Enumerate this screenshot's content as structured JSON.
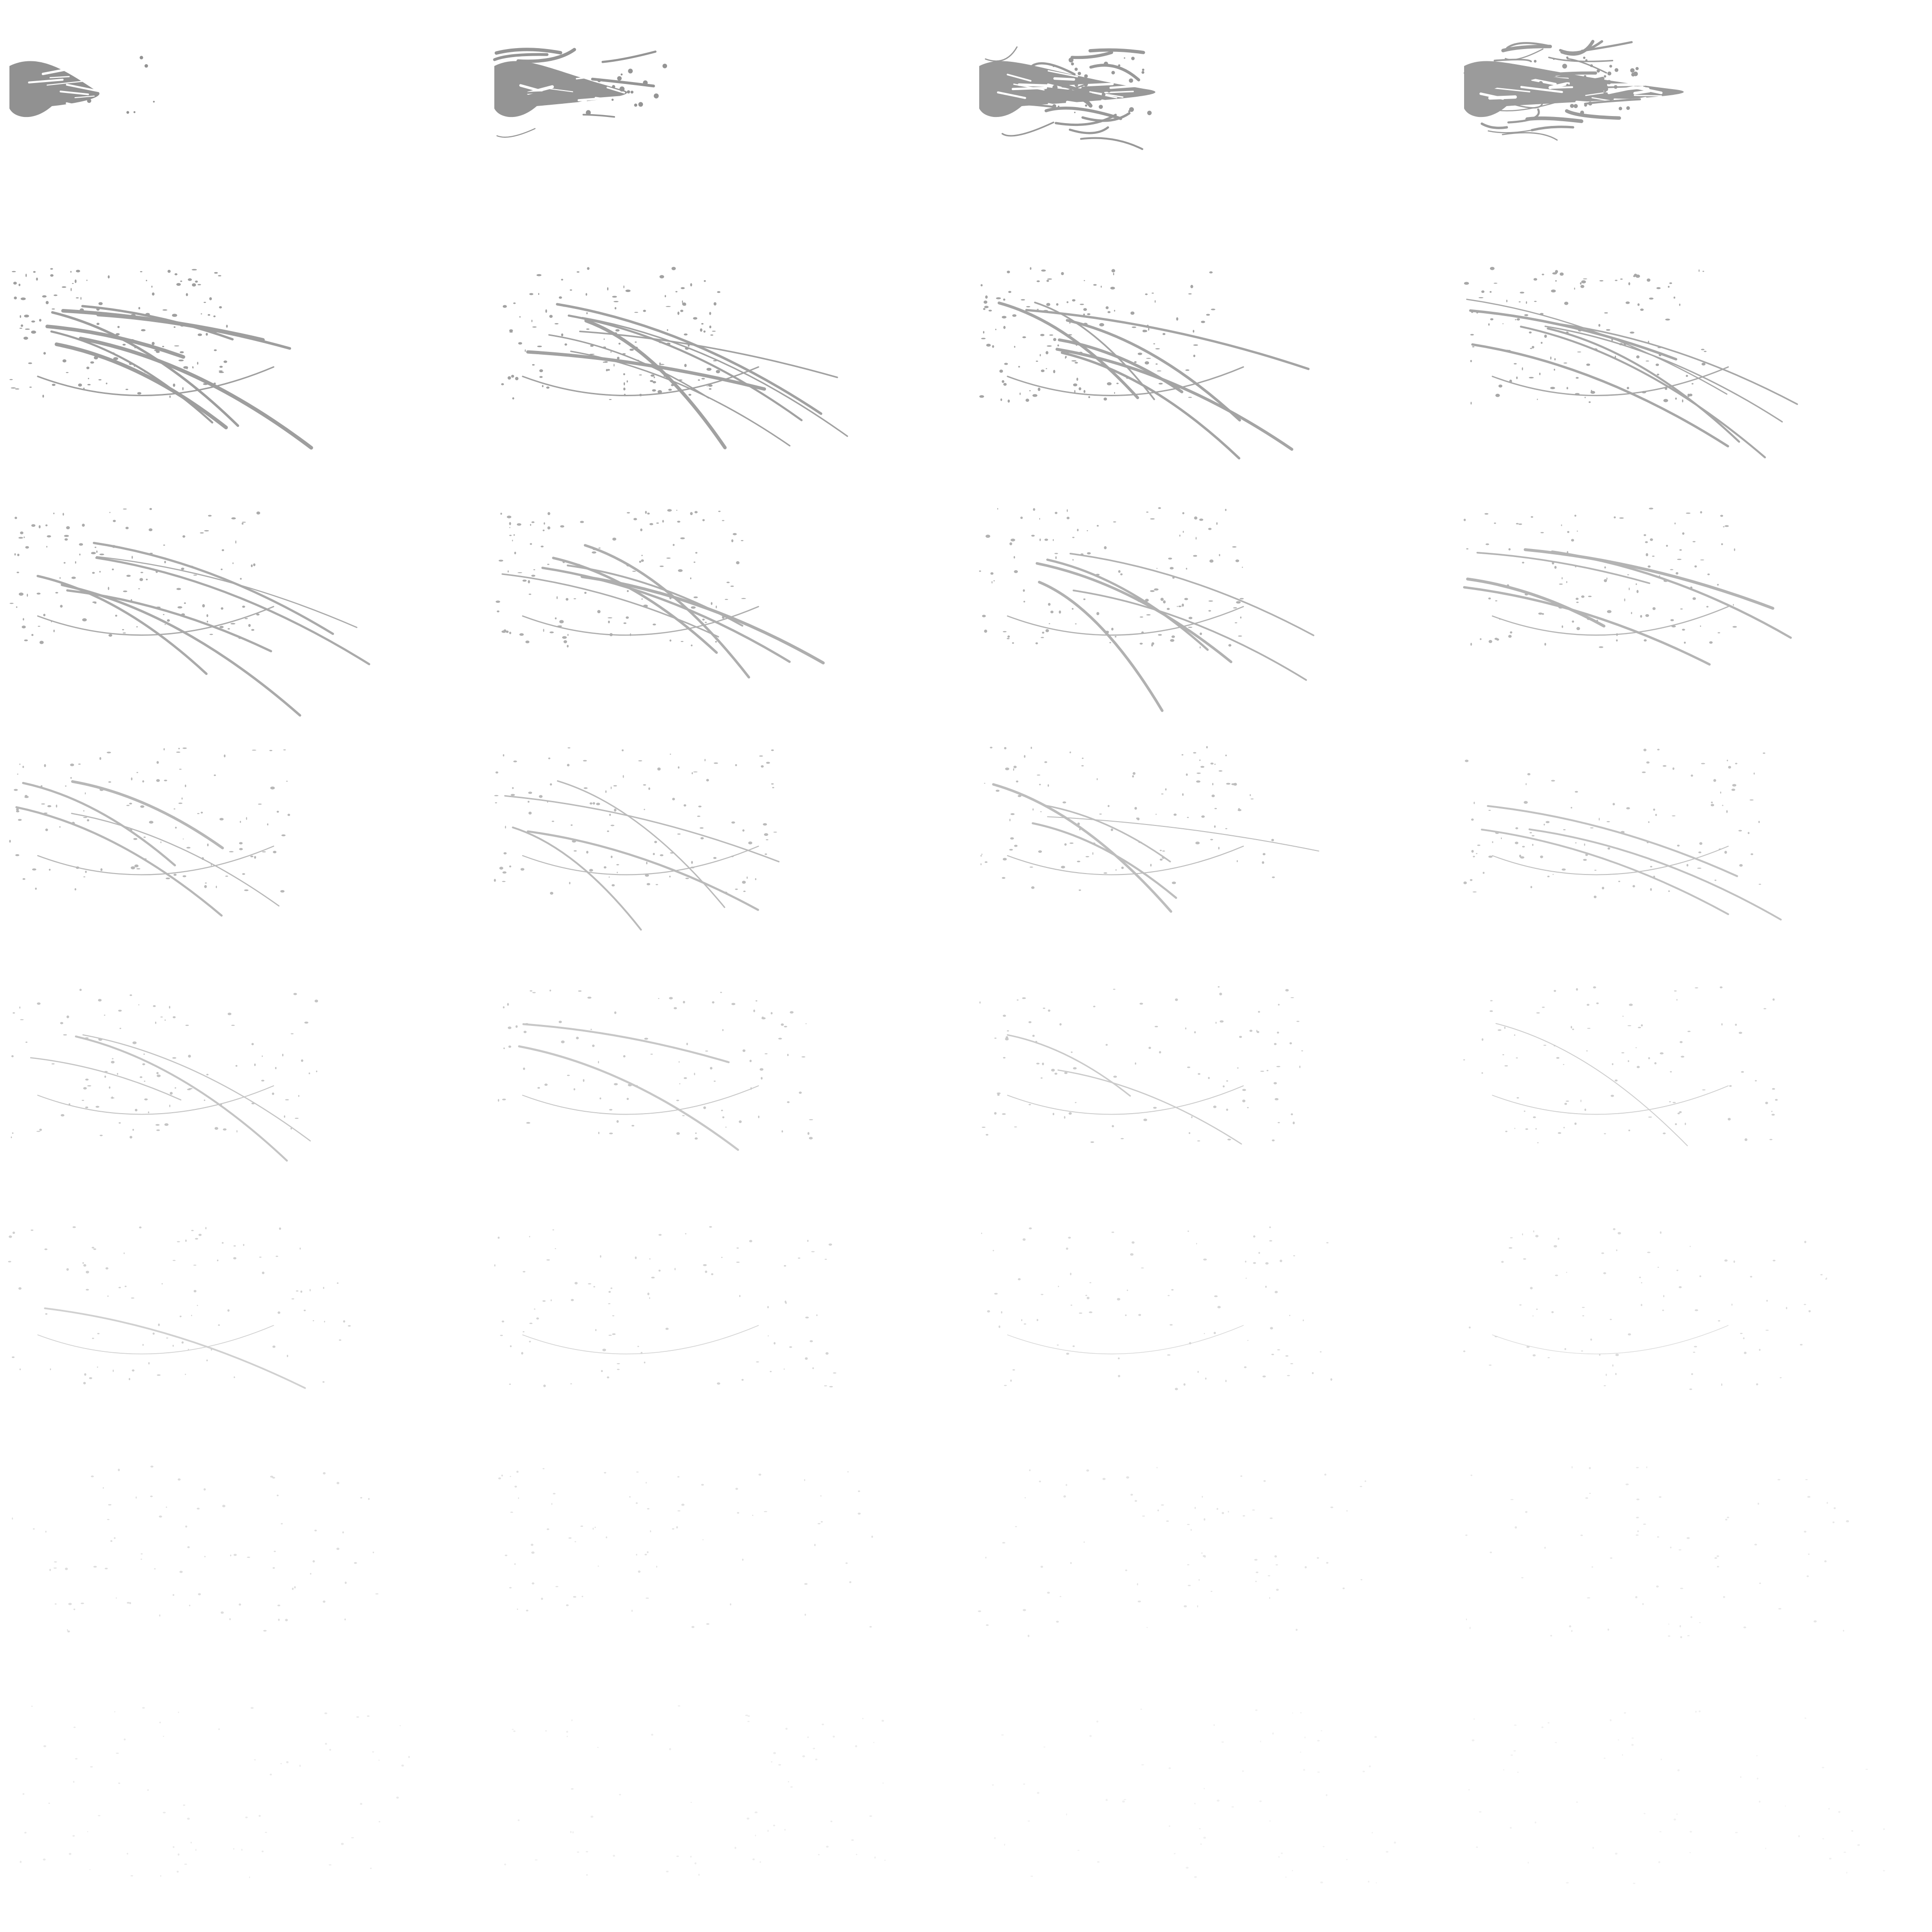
{
  "sheet": {
    "kind": "splash particle sprite sheet",
    "columns": 4,
    "rows": 8,
    "frame_count": 32,
    "background_color": "#ffffff",
    "ink_color": "#8c8c8c"
  },
  "frames": [
    {
      "index": 1,
      "stage": "blob"
    },
    {
      "index": 2,
      "stage": "blob"
    },
    {
      "index": 3,
      "stage": "blob"
    },
    {
      "index": 4,
      "stage": "blob"
    },
    {
      "index": 5,
      "stage": "branching"
    },
    {
      "index": 6,
      "stage": "branching"
    },
    {
      "index": 7,
      "stage": "branching"
    },
    {
      "index": 8,
      "stage": "branching"
    },
    {
      "index": 9,
      "stage": "streaks"
    },
    {
      "index": 10,
      "stage": "streaks"
    },
    {
      "index": 11,
      "stage": "streaks"
    },
    {
      "index": 12,
      "stage": "streaks"
    },
    {
      "index": 13,
      "stage": "thin-streaks"
    },
    {
      "index": 14,
      "stage": "thin-streaks"
    },
    {
      "index": 15,
      "stage": "thin-streaks"
    },
    {
      "index": 16,
      "stage": "thin-streaks"
    },
    {
      "index": 17,
      "stage": "droplets"
    },
    {
      "index": 18,
      "stage": "droplets"
    },
    {
      "index": 19,
      "stage": "droplets"
    },
    {
      "index": 20,
      "stage": "droplets"
    },
    {
      "index": 21,
      "stage": "sparse-droplets"
    },
    {
      "index": 22,
      "stage": "sparse-droplets"
    },
    {
      "index": 23,
      "stage": "sparse-droplets"
    },
    {
      "index": 24,
      "stage": "sparse-droplets"
    },
    {
      "index": 25,
      "stage": "mist"
    },
    {
      "index": 26,
      "stage": "mist"
    },
    {
      "index": 27,
      "stage": "mist"
    },
    {
      "index": 28,
      "stage": "mist"
    },
    {
      "index": 29,
      "stage": "faded"
    },
    {
      "index": 30,
      "stage": "faded"
    },
    {
      "index": 31,
      "stage": "faded"
    },
    {
      "index": 32,
      "stage": "faded"
    }
  ]
}
